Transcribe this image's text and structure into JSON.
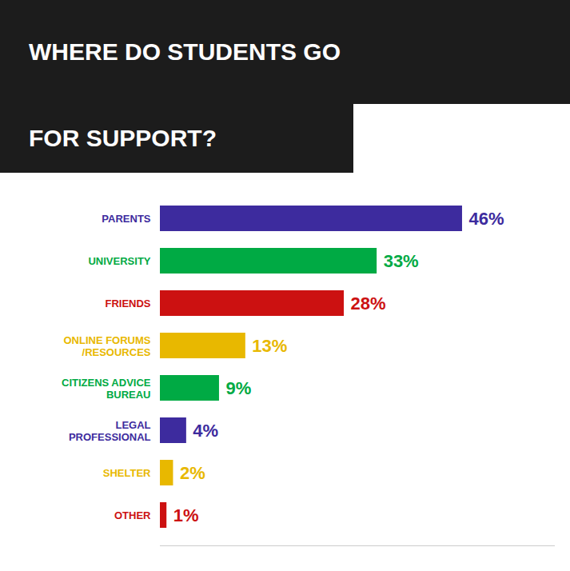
{
  "chart_data": {
    "type": "bar",
    "title": "WHERE DO STUDENTS GO\nFOR SUPPORT?",
    "orientation": "horizontal",
    "categories": [
      "PARENTS",
      "UNIVERSITY",
      "FRIENDS",
      "ONLINE FORUMS\n/RESOURCES",
      "CITIZENS ADVICE\nBUREAU",
      "LEGAL\nPROFESSIONAL",
      "SHELTER",
      "OTHER"
    ],
    "values": [
      46,
      33,
      28,
      13,
      9,
      4,
      2,
      1
    ],
    "value_labels": [
      "46%",
      "33%",
      "28%",
      "13%",
      "9%",
      "4%",
      "2%",
      "1%"
    ],
    "colors": [
      "#3d2b9e",
      "#00aa44",
      "#cc1111",
      "#e8b800",
      "#00aa44",
      "#3d2b9e",
      "#e8b800",
      "#cc1111"
    ],
    "xlim": [
      0,
      60
    ],
    "data_labels": true,
    "tick_labels": false,
    "grid": false
  }
}
